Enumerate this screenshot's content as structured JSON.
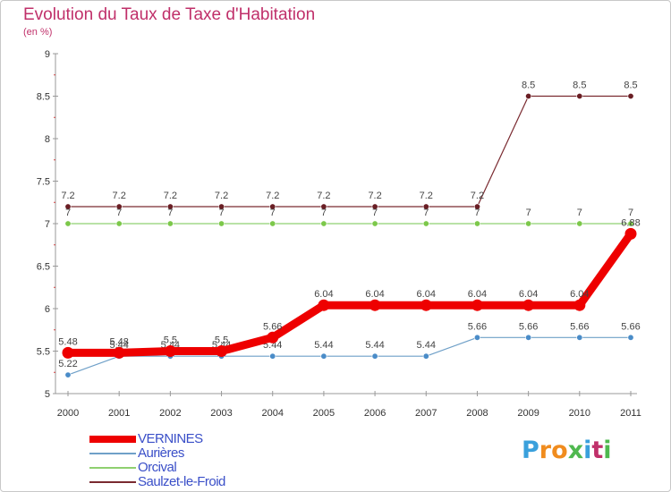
{
  "header": {
    "title": "Evolution du Taux de Taxe d'Habitation",
    "subtitle": "(en %)"
  },
  "brand": {
    "name": "Proxiti",
    "letters": [
      "P",
      "r",
      "o",
      "x",
      "i",
      "t",
      "i"
    ],
    "colors": [
      "#3aa0dc",
      "#f08c1e",
      "#f08c1e",
      "#4fb84f",
      "#3aa0dc",
      "#c0306a",
      "#4fb84f"
    ]
  },
  "chart_data": {
    "type": "line",
    "title": "Evolution du Taux de Taxe d'Habitation",
    "subtitle": "(en %)",
    "xlabel": "",
    "ylabel": "(en %)",
    "ylim": [
      5,
      9
    ],
    "yticks": [
      "5",
      "5.5",
      "6",
      "6.5",
      "7",
      "7.5",
      "8",
      "8.5",
      "9"
    ],
    "categories": [
      "2000",
      "2001",
      "2002",
      "2003",
      "2004",
      "2005",
      "2006",
      "2007",
      "2008",
      "2009",
      "2010",
      "2011"
    ],
    "legend_position": "bottom-left",
    "series": [
      {
        "name": "Saulzet-le-Froid",
        "color": "#7a2a30",
        "marker_color": "#6a1e24",
        "values": [
          7.2,
          7.2,
          7.2,
          7.2,
          7.2,
          7.2,
          7.2,
          7.2,
          7.2,
          8.5,
          8.5,
          8.5
        ],
        "labels": [
          "7.2",
          "7.2",
          "7.2",
          "7.2",
          "7.2",
          "7.2",
          "7.2",
          "7.2",
          "7.2",
          "8.5",
          "8.5",
          "8.5"
        ]
      },
      {
        "name": "Orcival",
        "color": "#8fd070",
        "marker_color": "#7cc84a",
        "values": [
          7,
          7,
          7,
          7,
          7,
          7,
          7,
          7,
          7,
          7,
          7,
          7
        ],
        "labels": [
          "7",
          "7",
          "7",
          "7",
          "7",
          "7",
          "7",
          "7",
          "7",
          "7",
          "7",
          "7"
        ]
      },
      {
        "name": "Aurières",
        "color": "#6fa0c8",
        "marker_color": "#4a8cc8",
        "values": [
          5.22,
          5.44,
          5.44,
          5.44,
          5.44,
          5.44,
          5.44,
          5.44,
          5.66,
          5.66,
          5.66,
          5.66
        ],
        "labels": [
          "5.22",
          "5.44",
          "5.44",
          "5.44",
          "5.44",
          "5.44",
          "5.44",
          "5.44",
          "5.66",
          "5.66",
          "5.66",
          "5.66"
        ]
      },
      {
        "name": "VERNINES",
        "color": "#ee0000",
        "marker_color": "#ee0000",
        "values": [
          5.48,
          5.48,
          5.5,
          5.5,
          5.66,
          6.04,
          6.04,
          6.04,
          6.04,
          6.04,
          6.04,
          6.88
        ],
        "labels": [
          "5.48",
          "5.48",
          "5.5",
          "5.5",
          "5.66",
          "6.04",
          "6.04",
          "6.04",
          "6.04",
          "6.04",
          "6.04",
          "6.88"
        ]
      }
    ],
    "legend": [
      "VERNINES",
      "Aurières",
      "Orcival",
      "Saulzet-le-Froid"
    ]
  }
}
